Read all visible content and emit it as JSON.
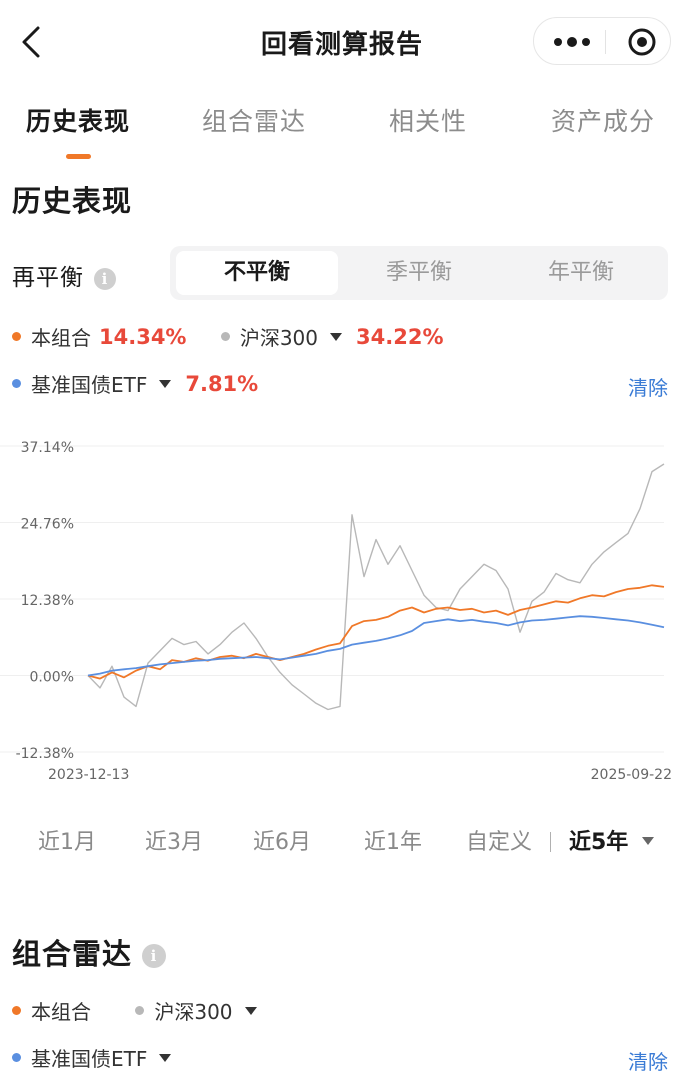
{
  "nav": {
    "title": "回看测算报告"
  },
  "tabs": [
    {
      "label": "历史表现",
      "active": true
    },
    {
      "label": "组合雷达",
      "active": false
    },
    {
      "label": "相关性",
      "active": false
    },
    {
      "label": "资产成分",
      "active": false
    }
  ],
  "history": {
    "title": "历史表现",
    "rebalance_label": "再平衡",
    "rebalance_options": [
      "不平衡",
      "季平衡",
      "年平衡"
    ],
    "rebalance_selected": "不平衡",
    "legend": [
      {
        "name": "本组合",
        "value": "14.34%",
        "color": "#f07828",
        "dropdown": false
      },
      {
        "name": "沪深300",
        "value": "34.22%",
        "color": "#b8b8b8",
        "dropdown": true
      },
      {
        "name": "基准国债ETF",
        "value": "7.81%",
        "color": "#5a8fe0",
        "dropdown": true
      }
    ],
    "clear_label": "清除",
    "periods": [
      "近1月",
      "近3月",
      "近6月",
      "近1年",
      "自定义",
      "近5年"
    ],
    "period_selected": "近5年"
  },
  "chart_data": {
    "type": "line",
    "x_start": "2023-12-13",
    "x_end": "2025-09-22",
    "x_tick_labels": [
      "2023-12-13",
      "2025-09-22"
    ],
    "y_tick_labels": [
      "37.14%",
      "24.76%",
      "12.38%",
      "0.00%",
      "-12.38%"
    ],
    "ylim": [
      -12.38,
      37.14
    ],
    "grid": true,
    "series": [
      {
        "name": "本组合",
        "color": "#f07828",
        "values": [
          0,
          -0.5,
          0.5,
          -0.3,
          0.8,
          1.5,
          1.0,
          2.5,
          2.2,
          2.8,
          2.4,
          3.0,
          3.2,
          2.8,
          3.5,
          3.0,
          2.5,
          3.0,
          3.5,
          4.2,
          4.8,
          5.2,
          8.0,
          8.8,
          9.0,
          9.5,
          10.5,
          11.0,
          10.2,
          10.8,
          11.0,
          10.6,
          10.8,
          10.2,
          10.5,
          9.8,
          10.6,
          11.0,
          11.5,
          12.0,
          11.8,
          12.5,
          13.0,
          12.8,
          13.5,
          14.0,
          14.2,
          14.6,
          14.34
        ]
      },
      {
        "name": "沪深300",
        "color": "#b8b8b8",
        "values": [
          0,
          -2.0,
          1.5,
          -3.5,
          -5.0,
          2.0,
          4.0,
          6.0,
          5.0,
          5.5,
          3.5,
          5.0,
          7.0,
          8.5,
          6.0,
          3.0,
          0.5,
          -1.5,
          -3.0,
          -4.5,
          -5.5,
          -5.0,
          26.0,
          16.0,
          22.0,
          18.0,
          21.0,
          17.0,
          13.0,
          11.0,
          10.5,
          14.0,
          16.0,
          18.0,
          17.0,
          14.0,
          7.0,
          12.0,
          13.5,
          16.5,
          15.5,
          15.0,
          18.0,
          20.0,
          21.5,
          23.0,
          27.0,
          33.0,
          34.22
        ]
      },
      {
        "name": "基准国债ETF",
        "color": "#5a8fe0",
        "values": [
          0,
          0.3,
          0.8,
          1.0,
          1.2,
          1.5,
          1.8,
          2.0,
          2.2,
          2.4,
          2.5,
          2.7,
          2.8,
          2.9,
          3.0,
          2.8,
          2.6,
          2.9,
          3.2,
          3.5,
          4.0,
          4.3,
          5.0,
          5.3,
          5.6,
          6.0,
          6.5,
          7.2,
          8.5,
          8.8,
          9.1,
          8.8,
          9.0,
          8.7,
          8.5,
          8.1,
          8.6,
          8.9,
          9.0,
          9.2,
          9.4,
          9.6,
          9.5,
          9.3,
          9.1,
          8.9,
          8.6,
          8.2,
          7.81
        ]
      }
    ]
  },
  "radar": {
    "title": "组合雷达",
    "legend": [
      {
        "name": "本组合",
        "color": "#f07828",
        "dropdown": false
      },
      {
        "name": "沪深300",
        "color": "#b8b8b8",
        "dropdown": true
      },
      {
        "name": "基准国债ETF",
        "color": "#5a8fe0",
        "dropdown": true
      }
    ],
    "clear_label": "清除"
  }
}
